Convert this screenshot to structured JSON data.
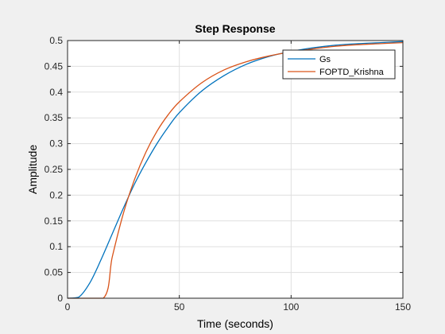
{
  "chart_data": {
    "type": "line",
    "title": "Step Response",
    "xlabel": "Time (seconds)",
    "ylabel": "Amplitude",
    "xlim": [
      0,
      150
    ],
    "ylim": [
      0,
      0.5
    ],
    "x_ticks": [
      0,
      50,
      100,
      150
    ],
    "y_ticks": [
      0,
      0.05,
      0.1,
      0.15,
      0.2,
      0.25,
      0.3,
      0.35,
      0.4,
      0.45,
      0.5
    ],
    "x_tick_labels": [
      "0",
      "50",
      "100",
      "150"
    ],
    "y_tick_labels": [
      "0",
      "0.05",
      "0.1",
      "0.15",
      "0.2",
      "0.25",
      "0.3",
      "0.35",
      "0.4",
      "0.45",
      "0.5"
    ],
    "grid": true,
    "legend_position": "top-right",
    "final_value_line": 0.5,
    "series": [
      {
        "name": "Gs",
        "color": "#0072BD",
        "x": [
          0,
          5,
          10,
          15,
          20,
          25,
          30,
          35,
          40,
          45,
          50,
          60,
          70,
          80,
          90,
          100,
          110,
          120,
          130,
          140,
          150
        ],
        "y": [
          0,
          0.002,
          0.03,
          0.075,
          0.125,
          0.175,
          0.222,
          0.263,
          0.3,
          0.332,
          0.36,
          0.402,
          0.432,
          0.454,
          0.469,
          0.479,
          0.486,
          0.491,
          0.494,
          0.496,
          0.498
        ]
      },
      {
        "name": "FOPTD_Krishna",
        "color": "#D95319",
        "x": [
          0,
          16,
          20,
          25,
          30,
          35,
          40,
          45,
          50,
          60,
          70,
          80,
          90,
          100,
          110,
          120,
          130,
          140,
          150
        ],
        "y": [
          0,
          0,
          0.08,
          0.165,
          0.231,
          0.283,
          0.324,
          0.356,
          0.381,
          0.418,
          0.443,
          0.459,
          0.47,
          0.478,
          0.484,
          0.489,
          0.492,
          0.494,
          0.496
        ]
      }
    ]
  }
}
